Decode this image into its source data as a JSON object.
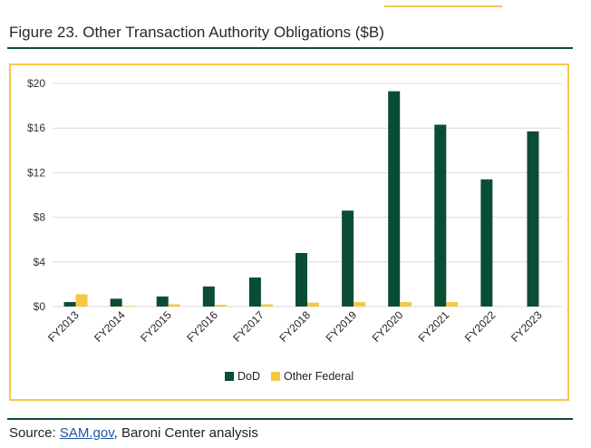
{
  "figure": {
    "title": "Figure 23. Other Transaction Authority Obligations ($B)"
  },
  "source": {
    "prefix": "Source: ",
    "link_text": "SAM.gov",
    "suffix": ", Baroni Center analysis"
  },
  "colors": {
    "dod": "#0b4d34",
    "other_federal": "#f5c842",
    "frame": "#f2c94c",
    "rule": "#0e4d36",
    "grid": "#d9d9d9"
  },
  "chart_data": {
    "type": "bar",
    "title": "",
    "xlabel": "",
    "ylabel": "",
    "ylim": [
      0,
      20
    ],
    "yticks": [
      {
        "value": 0,
        "label": "$0"
      },
      {
        "value": 4,
        "label": "$4"
      },
      {
        "value": 8,
        "label": "$8"
      },
      {
        "value": 12,
        "label": "$12"
      },
      {
        "value": 16,
        "label": "$16"
      },
      {
        "value": 20,
        "label": "$20"
      }
    ],
    "grid": true,
    "legend_position": "bottom-center",
    "categories": [
      "FY2013",
      "FY2014",
      "FY2015",
      "FY2016",
      "FY2017",
      "FY2018",
      "FY2019",
      "FY2020",
      "FY2021",
      "FY2022",
      "FY2023"
    ],
    "series": [
      {
        "name": "DoD",
        "color": "#0b4d34",
        "values": [
          0.4,
          0.7,
          0.9,
          1.8,
          2.6,
          4.8,
          8.6,
          19.3,
          16.3,
          11.4,
          15.7
        ]
      },
      {
        "name": "Other Federal",
        "color": "#f5c842",
        "values": [
          1.1,
          0.05,
          0.2,
          0.15,
          0.2,
          0.35,
          0.4,
          0.4,
          0.4,
          0.02,
          0.02
        ]
      }
    ]
  }
}
